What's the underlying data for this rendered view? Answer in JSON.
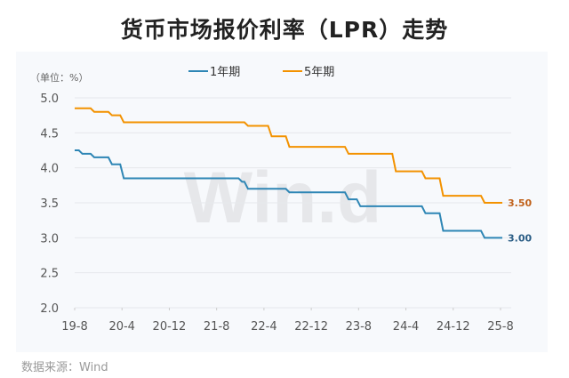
{
  "title": "货币市场报价利率（LPR）走势",
  "source": "数据来源：Wind",
  "watermark": "Win.d",
  "chart_data": {
    "type": "line",
    "title": "货币市场报价利率（LPR）走势",
    "unit_label": "（单位：%）",
    "x_ticks": [
      "19-8",
      "20-4",
      "20-12",
      "21-8",
      "22-4",
      "22-12",
      "23-8",
      "24-4",
      "24-12",
      "25-8"
    ],
    "ylim": [
      2.0,
      5.0
    ],
    "y_ticks": [
      "2.0",
      "2.5",
      "3.0",
      "3.5",
      "4.0",
      "4.5",
      "5.0"
    ],
    "grid": true,
    "legend_position": "top",
    "series": [
      {
        "name": "1年期",
        "color": "#2e86b5",
        "end_label": "3.00",
        "steps": [
          [
            "2019-08",
            4.25
          ],
          [
            "2019-09",
            4.2
          ],
          [
            "2019-11",
            4.15
          ],
          [
            "2020-02",
            4.05
          ],
          [
            "2020-04",
            3.85
          ],
          [
            "2021-12",
            3.8
          ],
          [
            "2022-01",
            3.7
          ],
          [
            "2022-08",
            3.65
          ],
          [
            "2023-06",
            3.55
          ],
          [
            "2023-08",
            3.45
          ],
          [
            "2024-07",
            3.35
          ],
          [
            "2024-10",
            3.1
          ],
          [
            "2025-05",
            3.0
          ],
          [
            "2025-08",
            3.0
          ]
        ]
      },
      {
        "name": "5年期",
        "color": "#f39200",
        "end_label": "3.50",
        "steps": [
          [
            "2019-08",
            4.85
          ],
          [
            "2019-11",
            4.8
          ],
          [
            "2020-02",
            4.75
          ],
          [
            "2020-04",
            4.65
          ],
          [
            "2022-01",
            4.6
          ],
          [
            "2022-05",
            4.45
          ],
          [
            "2022-08",
            4.3
          ],
          [
            "2023-06",
            4.2
          ],
          [
            "2024-02",
            3.95
          ],
          [
            "2024-07",
            3.85
          ],
          [
            "2024-10",
            3.6
          ],
          [
            "2025-05",
            3.5
          ],
          [
            "2025-08",
            3.5
          ]
        ]
      }
    ]
  }
}
